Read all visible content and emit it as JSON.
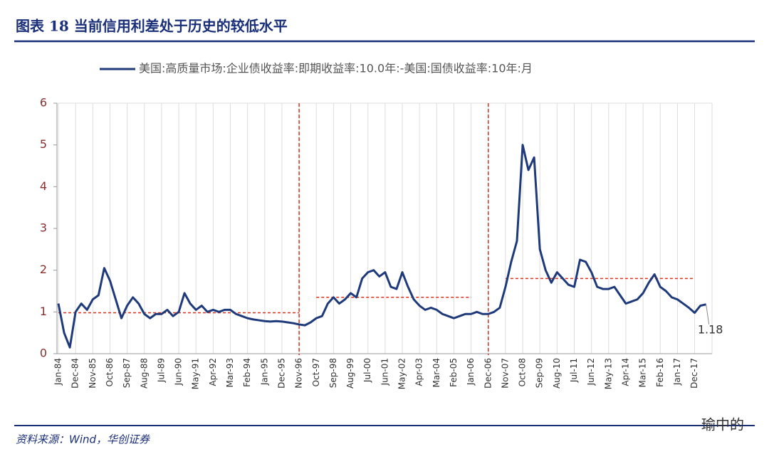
{
  "chart_data": {
    "type": "line",
    "title": "图表 18   当前信用利差处于历史的较低水平",
    "source": "资料来源：Wind，华创证券",
    "watermark": "瑜中的",
    "categories": [
      "Jan-84",
      null,
      null,
      "Dec-84",
      null,
      null,
      "Nov-85",
      null,
      null,
      "Oct-86",
      null,
      null,
      "Sep-87",
      null,
      null,
      "Aug-88",
      null,
      null,
      "Jul-89",
      null,
      null,
      "Jun-90",
      null,
      null,
      "May-91",
      null,
      null,
      "Apr-92",
      null,
      null,
      "Mar-93",
      null,
      null,
      "Feb-94",
      null,
      null,
      "Jan-95",
      null,
      null,
      "Dec-95",
      null,
      null,
      "Nov-96",
      null,
      null,
      "Oct-97",
      null,
      null,
      "Sep-98",
      null,
      null,
      "Aug-99",
      null,
      null,
      "Jul-00",
      null,
      null,
      "Jun-01",
      null,
      null,
      "May-02",
      null,
      null,
      "Apr-03",
      null,
      null,
      "Mar-04",
      null,
      null,
      "Feb-05",
      null,
      null,
      "Jan-06",
      null,
      null,
      "Dec-06",
      null,
      null,
      "Nov-07",
      null,
      null,
      "Oct-08",
      null,
      null,
      "Sep-09",
      null,
      null,
      "Aug-10",
      null,
      null,
      "Jul-11",
      null,
      null,
      "Jun-12",
      null,
      null,
      "May-13",
      null,
      null,
      "Apr-14",
      null,
      null,
      "Mar-15",
      null,
      null,
      "Feb-16",
      null,
      null,
      "Jan-17",
      null,
      null,
      "Dec-17",
      null,
      null
    ],
    "series": [
      {
        "name": "美国:高质量市场:企业债收益率:即期收益率:10.0年:-美国:国债收益率:10年:月",
        "color": "#1f3a7a",
        "values": [
          1.2,
          0.5,
          0.15,
          1.0,
          1.2,
          1.05,
          1.3,
          1.4,
          2.05,
          1.75,
          1.3,
          0.85,
          1.15,
          1.35,
          1.2,
          0.95,
          0.85,
          0.95,
          0.95,
          1.05,
          0.9,
          1.0,
          1.45,
          1.2,
          1.05,
          1.15,
          1.0,
          1.05,
          1.0,
          1.05,
          1.05,
          0.95,
          0.9,
          0.85,
          0.82,
          0.8,
          0.78,
          0.77,
          0.78,
          0.77,
          0.75,
          0.73,
          0.7,
          0.68,
          0.75,
          0.85,
          0.9,
          1.2,
          1.35,
          1.2,
          1.3,
          1.45,
          1.35,
          1.8,
          1.95,
          2.0,
          1.85,
          1.95,
          1.6,
          1.55,
          1.95,
          1.6,
          1.3,
          1.15,
          1.05,
          1.1,
          1.05,
          0.95,
          0.9,
          0.85,
          0.9,
          0.95,
          0.95,
          1.0,
          0.95,
          0.95,
          1.0,
          1.1,
          1.6,
          2.2,
          2.7,
          5.0,
          4.4,
          4.7,
          2.5,
          2.0,
          1.7,
          1.95,
          1.8,
          1.65,
          1.6,
          2.25,
          2.2,
          1.95,
          1.6,
          1.55,
          1.55,
          1.6,
          1.4,
          1.2,
          1.25,
          1.3,
          1.45,
          1.7,
          1.9,
          1.6,
          1.5,
          1.35,
          1.3,
          1.2,
          1.1,
          0.98,
          1.15,
          1.18
        ]
      }
    ],
    "ylim": [
      0,
      6
    ],
    "yticks": [
      0,
      1,
      2,
      3,
      4,
      5,
      6
    ],
    "grid": true,
    "vlines": [
      "Nov-96",
      "Dec-06"
    ],
    "hlines": [
      {
        "y": 0.98,
        "from": "Jan-84",
        "to": "Nov-96"
      },
      {
        "y": 1.35,
        "from": "Oct-97",
        "to": "Jan-06"
      },
      {
        "y": 1.8,
        "from": "Nov-07",
        "to": "Dec-17"
      }
    ],
    "reference_color": "#e0301e"
  }
}
